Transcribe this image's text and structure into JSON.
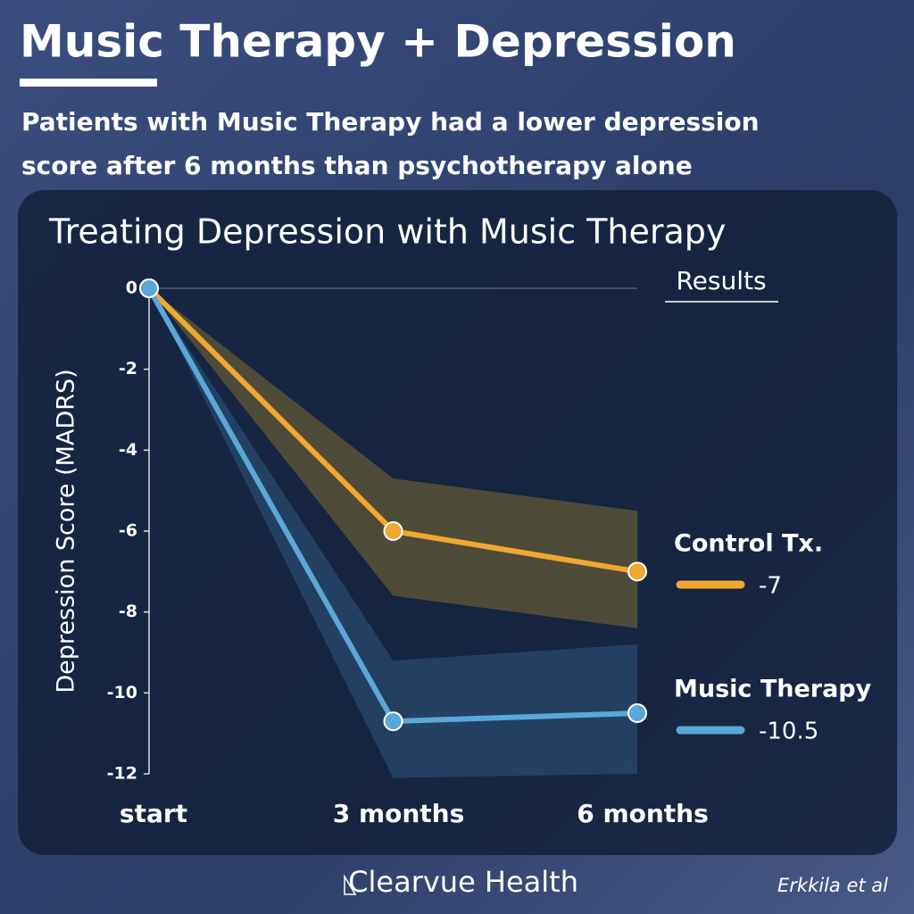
{
  "title": "Music Therapy + Depression",
  "subtitle": [
    "Patients with Music Therapy had a lower depression",
    "score after 6 months than psychotherapy alone"
  ],
  "chart_data": {
    "type": "line",
    "title": "Treating Depression with Music Therapy",
    "legend_title": "Results",
    "ylabel": "Depression Score (MADRS)",
    "categories": [
      "start",
      "3 months",
      "6 months"
    ],
    "ylim": [
      -12,
      0
    ],
    "yticks": [
      0,
      -2,
      -4,
      -6,
      -8,
      -10,
      -12
    ],
    "series": [
      {
        "name": "Control Tx.",
        "color": "#f0a830",
        "band_color": "rgba(200,160,40,0.32)",
        "values": [
          0,
          -6,
          -7
        ],
        "upper": [
          0,
          -4.7,
          -5.5
        ],
        "lower": [
          0,
          -7.6,
          -8.4
        ],
        "legend_value": -7
      },
      {
        "name": "Music Therapy",
        "color": "#5aa8d8",
        "band_color": "rgba(70,130,175,0.3)",
        "values": [
          0,
          -10.7,
          -10.5
        ],
        "upper": [
          0,
          -9.2,
          -8.8
        ],
        "lower": [
          0,
          -12.1,
          -12
        ],
        "legend_value": -10.5
      }
    ]
  },
  "brand": "Clearvue Health",
  "credit": "Erkkila et al"
}
